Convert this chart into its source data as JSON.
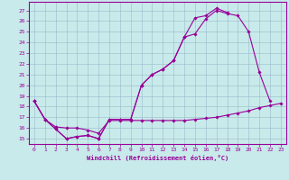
{
  "bg_color": "#c8eaea",
  "line_color": "#990099",
  "grid_color": "#99bbcc",
  "xlabel": "Windchill (Refroidissement éolien,°C)",
  "x_ticks": [
    0,
    1,
    2,
    3,
    4,
    5,
    6,
    7,
    8,
    9,
    10,
    11,
    12,
    13,
    14,
    15,
    16,
    17,
    18,
    19,
    20,
    21,
    22,
    23
  ],
  "y_ticks": [
    15,
    16,
    17,
    18,
    19,
    20,
    21,
    22,
    23,
    24,
    25,
    26,
    27
  ],
  "ylim": [
    14.5,
    27.8
  ],
  "xlim": [
    -0.5,
    23.5
  ],
  "line1_x": [
    0,
    1,
    2,
    3,
    4,
    5,
    6,
    7,
    8,
    9,
    10,
    11,
    12,
    13,
    14,
    15,
    16,
    17,
    18
  ],
  "line1_y": [
    18.5,
    16.8,
    15.9,
    15.0,
    15.2,
    15.3,
    15.0,
    16.8,
    16.8,
    16.8,
    20.0,
    21.0,
    21.5,
    22.3,
    24.5,
    26.3,
    26.5,
    27.2,
    26.8
  ],
  "line2_x": [
    0,
    1,
    2,
    3,
    4,
    5,
    6,
    7,
    8,
    9,
    10,
    11,
    12,
    13,
    14,
    15,
    16,
    17,
    18,
    19,
    20,
    21,
    22
  ],
  "line2_y": [
    18.5,
    16.8,
    15.9,
    15.0,
    15.2,
    15.3,
    15.0,
    16.8,
    16.8,
    16.8,
    20.0,
    21.0,
    21.5,
    22.3,
    24.5,
    24.8,
    26.2,
    27.0,
    26.7,
    26.5,
    25.0,
    21.2,
    18.5
  ],
  "line3_x": [
    0,
    1,
    2,
    3,
    4,
    5,
    6,
    7,
    8,
    9,
    10,
    11,
    12,
    13,
    14,
    15,
    16,
    17,
    18,
    19,
    20,
    21,
    22,
    23
  ],
  "line3_y": [
    18.5,
    16.8,
    16.1,
    16.0,
    16.0,
    15.8,
    15.5,
    16.7,
    16.7,
    16.7,
    16.7,
    16.7,
    16.7,
    16.7,
    16.7,
    16.8,
    16.9,
    17.0,
    17.2,
    17.4,
    17.6,
    17.9,
    18.1,
    18.3
  ]
}
